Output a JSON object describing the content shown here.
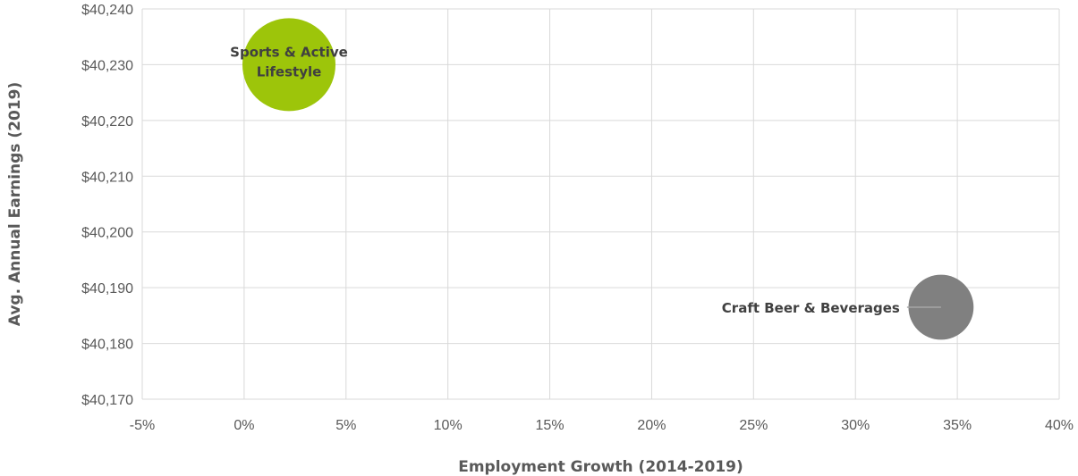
{
  "chart_data": {
    "type": "bubble",
    "title": "",
    "xlabel": "Employment Growth (2014-2019)",
    "ylabel": "Avg. Annual Earnings (2019)",
    "xlim": [
      -0.05,
      0.4
    ],
    "ylim": [
      40170,
      40240
    ],
    "x_ticks": [
      -0.05,
      0,
      0.05,
      0.1,
      0.15,
      0.2,
      0.25,
      0.3,
      0.35,
      0.4
    ],
    "x_tick_labels": [
      "-5%",
      "0%",
      "5%",
      "10%",
      "15%",
      "20%",
      "25%",
      "30%",
      "35%",
      "40%"
    ],
    "y_ticks": [
      40170,
      40180,
      40190,
      40200,
      40210,
      40220,
      40230,
      40240
    ],
    "y_tick_labels": [
      "$40,170",
      "$40,180",
      "$40,190",
      "$40,200",
      "$40,210",
      "$40,220",
      "$40,230",
      "$40,240"
    ],
    "grid": true,
    "series": [
      {
        "label_lines": [
          "Sports & Active",
          "Lifestyle"
        ],
        "x": 0.022,
        "y": 40230,
        "relative_size": 1.0,
        "color": "#9DC50A"
      },
      {
        "label_lines": [
          "Craft Beer & Beverages"
        ],
        "x": 0.342,
        "y": 40186.5,
        "relative_size": 0.49,
        "color": "#808080"
      }
    ]
  }
}
